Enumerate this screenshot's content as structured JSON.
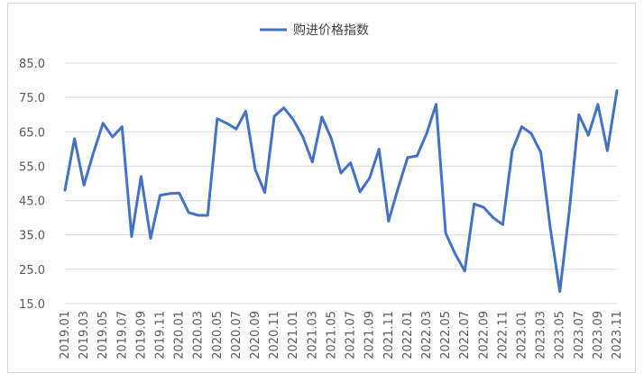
{
  "chart_data": {
    "type": "line",
    "title": "",
    "xlabel": "",
    "ylabel": "",
    "ylim": [
      15,
      85
    ],
    "yticks": [
      "15.0",
      "25.0",
      "35.0",
      "45.0",
      "55.0",
      "65.0",
      "75.0",
      "85.0"
    ],
    "ytick_values": [
      15,
      25,
      35,
      45,
      55,
      65,
      75,
      85
    ],
    "grid": true,
    "legend_position": "top-center",
    "series": [
      {
        "name": "购进价格指数",
        "color": "#4472c4",
        "values": [
          48.0,
          63.0,
          49.5,
          59.0,
          67.5,
          63.5,
          66.5,
          34.5,
          52.0,
          34.0,
          46.5,
          47.0,
          47.2,
          41.5,
          40.7,
          40.7,
          68.8,
          67.5,
          65.8,
          71.0,
          54.0,
          47.3,
          69.5,
          72.0,
          68.5,
          63.5,
          56.2,
          69.3,
          63.0,
          53.0,
          56.0,
          47.5,
          51.5,
          60.0,
          39.0,
          48.5,
          57.5,
          58.0,
          64.5,
          73.0,
          35.5,
          29.5,
          24.5,
          44.0,
          43.0,
          40.0,
          38.0,
          59.5,
          66.5,
          64.5,
          59.0,
          37.0,
          18.5,
          42.0,
          70.0,
          64.0,
          73.0,
          59.5,
          77.0
        ]
      }
    ],
    "x": [
      "2019.01",
      "2019.02",
      "2019.03",
      "2019.04",
      "2019.05",
      "2019.06",
      "2019.07",
      "2019.08",
      "2019.09",
      "2019.10",
      "2019.11",
      "2019.12",
      "2020.01",
      "2020.02",
      "2020.03",
      "2020.04",
      "2020.05",
      "2020.06",
      "2020.07",
      "2020.08",
      "2020.09",
      "2020.10",
      "2020.11",
      "2020.12",
      "2021.01",
      "2021.02",
      "2021.03",
      "2021.04",
      "2021.05",
      "2021.06",
      "2021.07",
      "2021.08",
      "2021.09",
      "2021.10",
      "2021.11",
      "2021.12",
      "2022.01",
      "2022.02",
      "2022.03",
      "2022.04",
      "2022.05",
      "2022.06",
      "2022.07",
      "2022.08",
      "2022.09",
      "2022.10",
      "2022.11",
      "2022.12",
      "2023.01",
      "2023.02",
      "2023.03",
      "2023.04",
      "2023.05",
      "2023.06",
      "2023.07",
      "2023.08",
      "2023.09",
      "2023.10",
      "2023.11"
    ],
    "xtick_labels": [
      "2019.01",
      "2019.03",
      "2019.05",
      "2019.07",
      "2019.09",
      "2019.11",
      "2020.01",
      "2020.03",
      "2020.05",
      "2020.07",
      "2020.09",
      "2020.11",
      "2021.01",
      "2021.03",
      "2021.05",
      "2021.07",
      "2021.09",
      "2021.11",
      "2022.01",
      "2022.03",
      "2022.05",
      "2022.07",
      "2022.09",
      "2022.11",
      "2023.01",
      "2023.03",
      "2023.05",
      "2023.07",
      "2023.09",
      "2023.11"
    ]
  }
}
